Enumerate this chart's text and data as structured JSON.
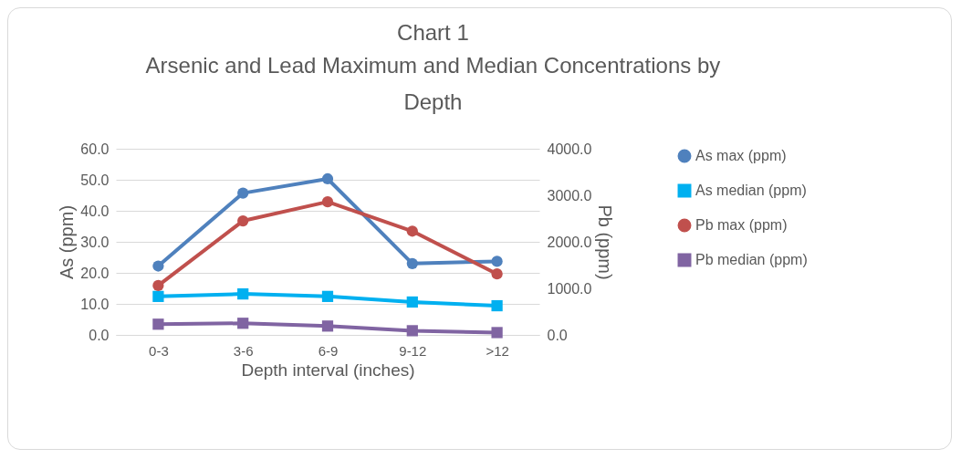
{
  "chart_data": {
    "type": "line",
    "title": "Chart 1",
    "subtitle": "Arsenic and Lead Maximum and Median Concentrations by Depth",
    "xlabel": "Depth interval (inches)",
    "ylabel": "As (ppm)",
    "y2label": "Pb (ppm)",
    "categories": [
      "0-3",
      "3-6",
      "6-9",
      "9-12",
      ">12"
    ],
    "series": [
      {
        "name": "As max (ppm)",
        "color": "#4f81bd",
        "marker": "circle",
        "values": [
          22.2,
          45.7,
          50.3,
          23.0,
          23.7
        ]
      },
      {
        "name": "As median (ppm)",
        "color": "#00b0f0",
        "marker": "square",
        "values": [
          12.4,
          13.2,
          12.4,
          10.6,
          9.4
        ]
      },
      {
        "name": "Pb max (ppm)",
        "color": "#c0504d",
        "marker": "circle",
        "axis": "y2",
        "values": [
          1060,
          2450,
          2860,
          2230,
          1310
        ]
      },
      {
        "name": "Pb median (ppm)",
        "color": "#8064a2",
        "marker": "square",
        "axis": "y2",
        "values": [
          230,
          250,
          190,
          90,
          50
        ]
      }
    ],
    "ylim": [
      0,
      60
    ],
    "yticks": [
      {
        "value": 0,
        "label": "0.0"
      },
      {
        "value": 10,
        "label": "10.0"
      },
      {
        "value": 20,
        "label": "20.0"
      },
      {
        "value": 30,
        "label": "30.0"
      },
      {
        "value": 40,
        "label": "40.0"
      },
      {
        "value": 50,
        "label": "50.0"
      },
      {
        "value": 60,
        "label": "60.0"
      }
    ],
    "y2lim": [
      0,
      4000
    ],
    "y2ticks": [
      {
        "value": 0,
        "label": "0.0"
      },
      {
        "value": 1000,
        "label": "1000.0"
      },
      {
        "value": 2000,
        "label": "2000.0"
      },
      {
        "value": 3000,
        "label": "3000.0"
      },
      {
        "value": 4000,
        "label": "4000.0"
      }
    ],
    "grid": "y",
    "legend": "right",
    "line_style": "solid"
  }
}
